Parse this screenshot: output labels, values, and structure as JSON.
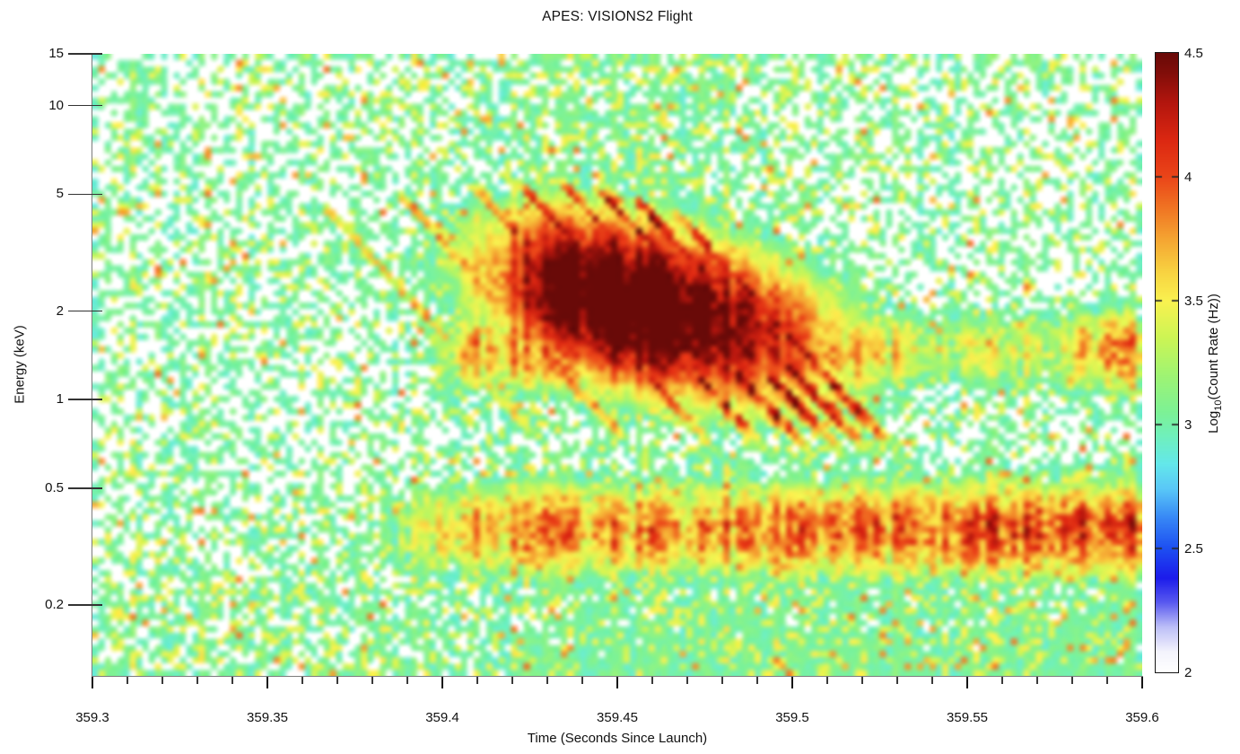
{
  "chart_data": {
    "type": "heatmap",
    "title": "APES: VISIONS2 Flight",
    "xlabel": "Time (Seconds Since Launch)",
    "ylabel": "Energy (keV)",
    "x_range": [
      359.3,
      359.6
    ],
    "y_range_kev": [
      0.115,
      15
    ],
    "y_scale": "log",
    "value_range_log10_hz": [
      2.0,
      4.5
    ],
    "x_ticks": [
      {
        "value": 359.3,
        "label": "359.3"
      },
      {
        "value": 359.35,
        "label": "359.35"
      },
      {
        "value": 359.4,
        "label": "359.4"
      },
      {
        "value": 359.45,
        "label": "359.45"
      },
      {
        "value": 359.5,
        "label": "359.5"
      },
      {
        "value": 359.55,
        "label": "359.55"
      },
      {
        "value": 359.6,
        "label": "359.6"
      }
    ],
    "x_minor_step": 0.01,
    "y_ticks": [
      {
        "value": 15,
        "label": "15"
      },
      {
        "value": 10,
        "label": "10"
      },
      {
        "value": 5,
        "label": "5"
      },
      {
        "value": 2,
        "label": "2"
      },
      {
        "value": 1,
        "label": "1"
      },
      {
        "value": 0.5,
        "label": "0.5"
      },
      {
        "value": 0.2,
        "label": "0.2"
      }
    ],
    "colorbar": {
      "range": [
        2.0,
        4.5
      ],
      "ticks": [
        {
          "value": 4.5,
          "label": "4.5"
        },
        {
          "value": 4.0,
          "label": "4"
        },
        {
          "value": 3.5,
          "label": "3.5"
        },
        {
          "value": 3.0,
          "label": "3"
        },
        {
          "value": 2.5,
          "label": "2.5"
        },
        {
          "value": 2.0,
          "label": "2"
        }
      ],
      "label_prefix": "Log",
      "label_sub": "10",
      "label_suffix": "(Count Rate (Hz))"
    },
    "colormap": [
      [
        2.0,
        "#ffffff"
      ],
      [
        2.08,
        "#f4f4fd"
      ],
      [
        2.18,
        "#bec0f8"
      ],
      [
        2.28,
        "#5a5af0"
      ],
      [
        2.38,
        "#1c1ceb"
      ],
      [
        2.5,
        "#1e50f2"
      ],
      [
        2.62,
        "#3787f6"
      ],
      [
        2.74,
        "#5ac8f8"
      ],
      [
        2.84,
        "#64e8eb"
      ],
      [
        2.95,
        "#70f0be"
      ],
      [
        3.05,
        "#7df296"
      ],
      [
        3.2,
        "#a0f473"
      ],
      [
        3.35,
        "#cdf555"
      ],
      [
        3.5,
        "#faf250"
      ],
      [
        3.62,
        "#f8d241"
      ],
      [
        3.75,
        "#f5a532"
      ],
      [
        3.88,
        "#f07323"
      ],
      [
        4.0,
        "#eb4619"
      ],
      [
        4.15,
        "#dc2812"
      ],
      [
        4.3,
        "#b4160e"
      ],
      [
        4.42,
        "#820e0a"
      ],
      [
        4.5,
        "#690a08"
      ]
    ],
    "grid": {
      "nx": 168,
      "ny": 100,
      "seed": 11
    },
    "features": {
      "background_speckle": {
        "p_green": 0.4,
        "p_yellow": 0.11,
        "p_orange": 0.018,
        "green_v": [
          2.88,
          3.18
        ],
        "yellow_v": [
          3.3,
          3.58
        ],
        "orange_v": [
          3.62,
          3.92
        ],
        "low_u_start": -0.15,
        "low_u_range": 0.9,
        "event_t": 359.455,
        "event_w": 0.05,
        "event_boost": 0.5,
        "right_t0": 359.4,
        "right_t1": 359.5,
        "right_boost": 0.45,
        "orange_right_extra": 0.04
      },
      "low_band": {
        "center_kev": 0.36,
        "sigma_dex": 0.165,
        "t_on": 359.345,
        "t_full": 359.415,
        "amp": 1.95,
        "late_grow": 0.12
      },
      "mid_band": {
        "center_kev": 1.48,
        "sigma_dex": 0.145,
        "t_on": 359.385,
        "t_full": 359.408,
        "amp": 1.95,
        "fade_t0": 359.5,
        "fade_t1": 359.545,
        "fade_frac": 0.25,
        "end_bump_t": 359.592,
        "end_bump_w": 0.011,
        "end_bump_amp": 0.55
      },
      "core_blob": {
        "t_center": 359.452,
        "sigma_t_left": 0.038,
        "sigma_t_right": 0.055,
        "u_center": 0.33,
        "tilt_dex_per_s": -2.6,
        "sigma_u": 0.26,
        "amp": 3.0
      },
      "streaks": {
        "slope_dex_per_s": 13,
        "items": [
          {
            "t0": 359.362,
            "e_top_kev": 5.2,
            "amp": 1.75
          },
          {
            "t0": 359.383,
            "e_top_kev": 5.8,
            "amp": 1.95
          },
          {
            "t0": 359.405,
            "e_top_kev": 6.0,
            "amp": 2.15
          },
          {
            "t0": 359.418,
            "e_top_kev": 6.2,
            "amp": 2.3
          },
          {
            "t0": 359.43,
            "e_top_kev": 6.2,
            "amp": 2.4
          },
          {
            "t0": 359.44,
            "e_top_kev": 6.0,
            "amp": 2.45
          },
          {
            "t0": 359.451,
            "e_top_kev": 5.5,
            "amp": 2.4
          },
          {
            "t0": 359.462,
            "e_top_kev": 5.0,
            "amp": 2.35
          }
        ]
      }
    }
  }
}
